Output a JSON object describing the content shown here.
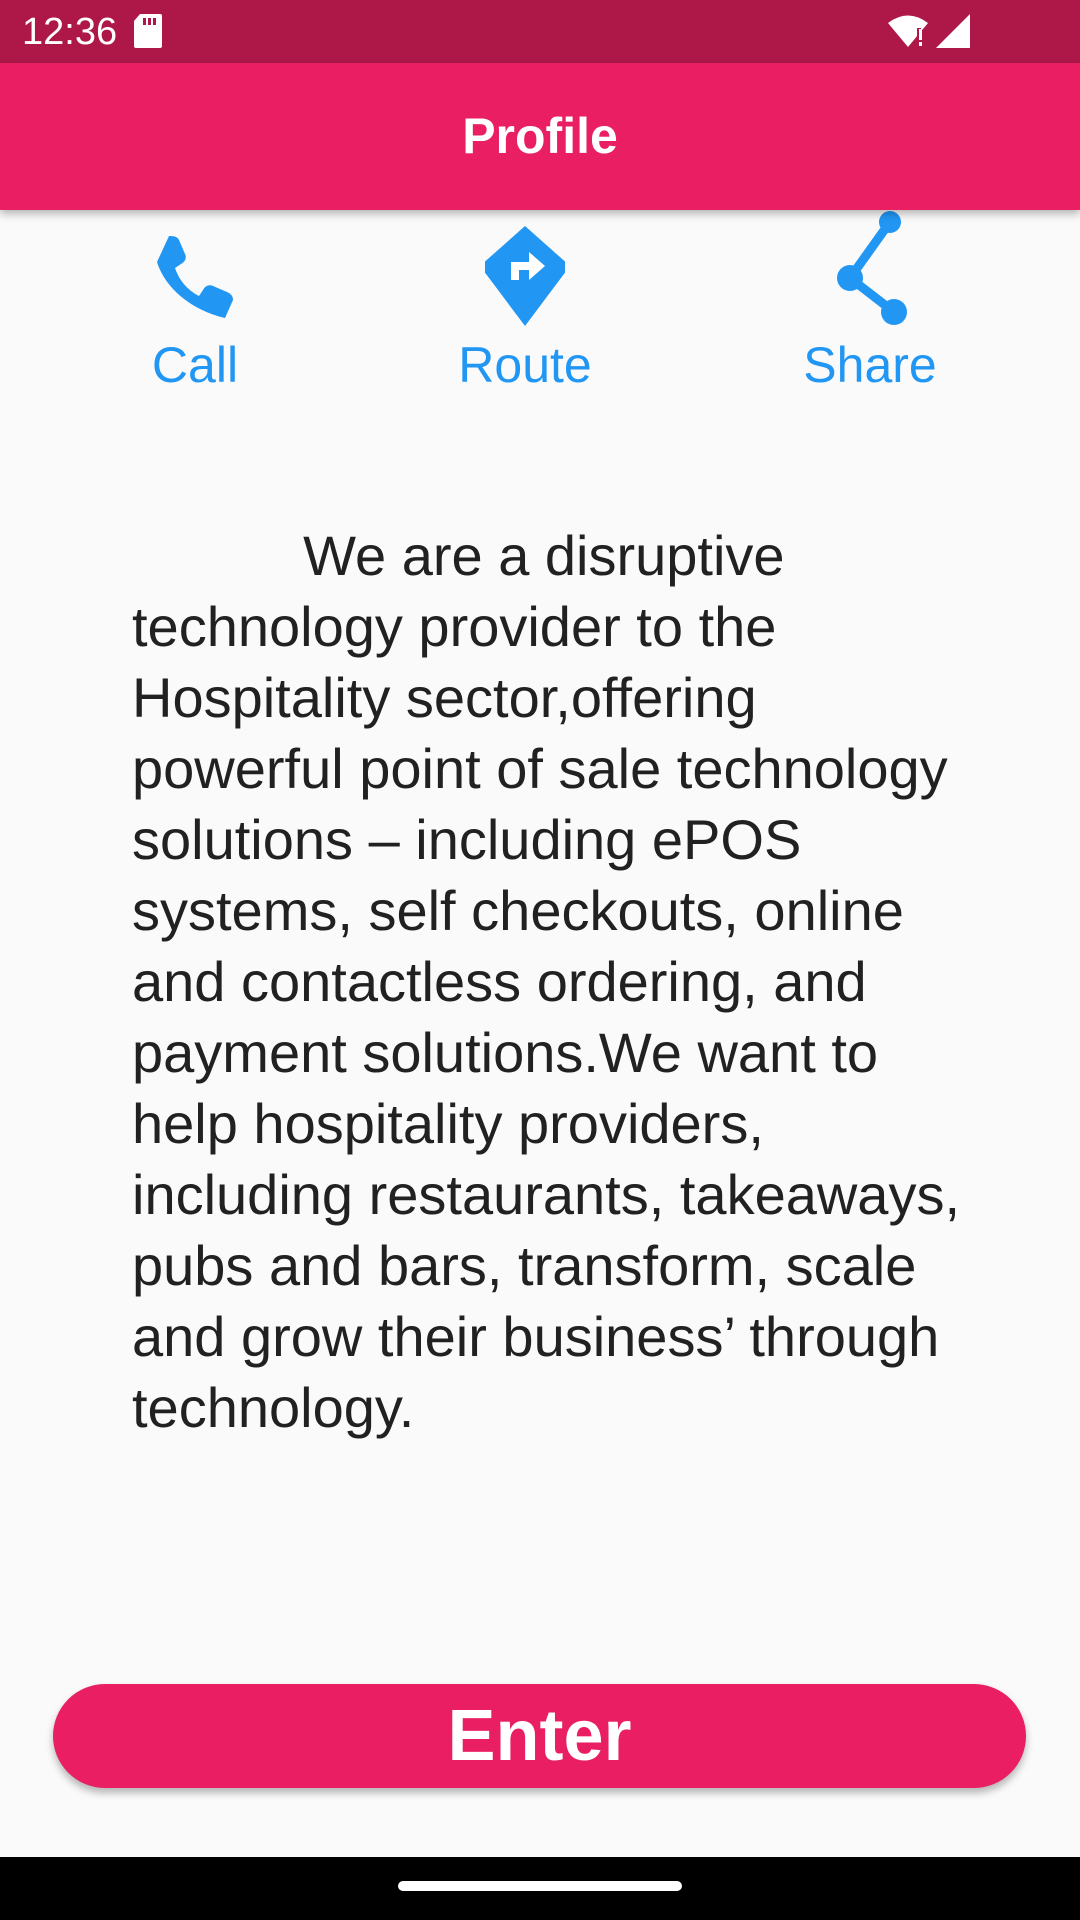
{
  "status_bar": {
    "time": "12:36",
    "icons": [
      "sd-card-icon",
      "wifi-icon",
      "signal-icon"
    ]
  },
  "app_bar": {
    "title": "Profile"
  },
  "actions": [
    {
      "label": "Call",
      "icon": "phone-icon"
    },
    {
      "label": "Route",
      "icon": "directions-icon"
    },
    {
      "label": "Share",
      "icon": "share-icon"
    }
  ],
  "description": "           We are a disruptive technology provider to the Hospitality sector,offering powerful point of sale technology solutions – including ePOS systems, self checkouts, online and contactless ordering, and payment solutions.We want to help hospitality providers, including restaurants, takeaways, pubs and bars, transform, scale and grow their business’ through technology.",
  "enter_button": {
    "label": "Enter"
  },
  "colors": {
    "status_bar": "#ad1849",
    "primary": "#e91e63",
    "accent": "#2196f3",
    "background": "#fafafa",
    "text": "#212121"
  }
}
